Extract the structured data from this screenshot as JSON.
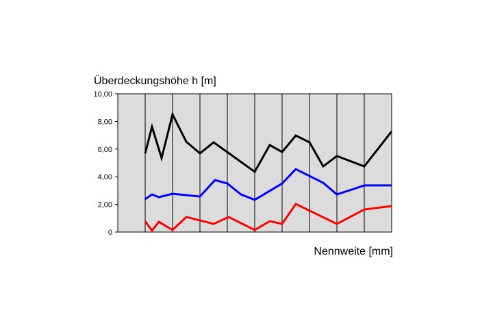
{
  "chart_data": {
    "type": "line",
    "y_label": "Überdeckungshöhe h [m]",
    "x_label": "Nennweite [mm]",
    "xlim": [
      0,
      10
    ],
    "xticks": [
      1,
      2,
      3,
      4,
      5,
      6,
      7,
      8,
      9
    ],
    "ylim": [
      0,
      10
    ],
    "yticks": [
      0,
      {
        "value": 2,
        "label": "2,00"
      },
      {
        "value": 4,
        "label": "4,00"
      },
      {
        "value": 6,
        "label": "6,00"
      },
      {
        "value": 8,
        "label": "8,00"
      },
      {
        "value": 10,
        "label": "10,00"
      }
    ],
    "grid": true,
    "series": [
      {
        "color": "#000000",
        "x": [
          1,
          1.25,
          1.6,
          2,
          2.5,
          3,
          3.5,
          5,
          5.55,
          6,
          6.5,
          7,
          7.5,
          8,
          9,
          10
        ],
        "values": [
          5.69,
          7.62,
          5.35,
          8.51,
          6.53,
          5.69,
          6.49,
          4.36,
          6.29,
          5.79,
          6.98,
          6.49,
          4.75,
          5.5,
          4.75,
          7.28
        ]
      },
      {
        "color": "#0000ff",
        "x": [
          1,
          1.25,
          1.5,
          2,
          3,
          3.55,
          4,
          4.5,
          5,
          6,
          6.5,
          7.5,
          8,
          9,
          10
        ],
        "values": [
          2.38,
          2.72,
          2.52,
          2.77,
          2.57,
          3.76,
          3.51,
          2.72,
          2.33,
          3.51,
          4.55,
          3.56,
          2.72,
          3.37,
          3.37
        ]
      },
      {
        "color": "#ff0000",
        "x": [
          1,
          1.25,
          1.5,
          2,
          2.5,
          3.5,
          4.05,
          5,
          5.55,
          6,
          6.5,
          8,
          9,
          10
        ],
        "values": [
          0.79,
          0.1,
          0.74,
          0.15,
          1.09,
          0.59,
          1.09,
          0.15,
          0.79,
          0.59,
          2.03,
          0.59,
          1.63,
          1.88
        ]
      }
    ]
  }
}
